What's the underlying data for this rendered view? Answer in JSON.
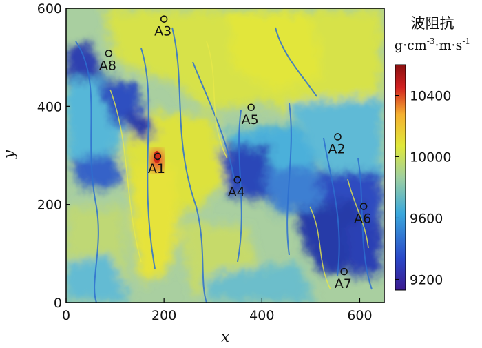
{
  "chart_data": {
    "type": "heatmap",
    "xlabel": "x",
    "ylabel": "y",
    "xlim": [
      0,
      650
    ],
    "ylim": [
      0,
      600
    ],
    "xticks": [
      0,
      200,
      400,
      600
    ],
    "yticks": [
      0,
      200,
      400,
      600
    ],
    "grid": false,
    "colorbar": {
      "title": "波阻抗",
      "unit_parts": [
        "g·cm",
        "-3",
        "·m·s",
        "-1"
      ],
      "range": [
        9130,
        10600
      ],
      "ticks": [
        9200,
        9600,
        10000,
        10400
      ],
      "colormap": [
        "#3b1a8f",
        "#2a47c8",
        "#3aa8dc",
        "#9fd0a0",
        "#e0e83a",
        "#f5b030",
        "#d22020",
        "#8a1010"
      ]
    },
    "wells": [
      {
        "name": "A1",
        "x": 187,
        "y": 298
      },
      {
        "name": "A2",
        "x": 555,
        "y": 338
      },
      {
        "name": "A3",
        "x": 200,
        "y": 578
      },
      {
        "name": "A4",
        "x": 350,
        "y": 250
      },
      {
        "name": "A5",
        "x": 378,
        "y": 398
      },
      {
        "name": "A6",
        "x": 608,
        "y": 196
      },
      {
        "name": "A7",
        "x": 568,
        "y": 63
      },
      {
        "name": "A8",
        "x": 87,
        "y": 508
      }
    ]
  }
}
